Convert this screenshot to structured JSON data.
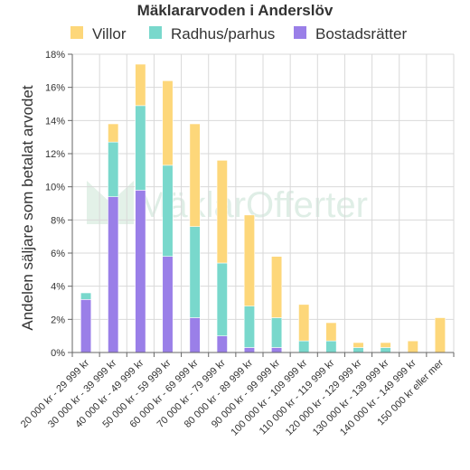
{
  "chart_data": {
    "type": "bar",
    "stacked": true,
    "title": "Mäklararvoden i Anderslöv",
    "ylabel": "Andelen säljare som betalat arvodet",
    "xlabel": "",
    "ylim": [
      0,
      18
    ],
    "yticks": [
      "0%",
      "2%",
      "4%",
      "6%",
      "8%",
      "10%",
      "12%",
      "14%",
      "16%",
      "18%"
    ],
    "grid": true,
    "legend_position": "top",
    "categories": [
      "20 000 kr - 29 999 kr",
      "30 000 kr - 39 999 kr",
      "40 000 kr - 49 999 kr",
      "50 000 kr - 59 999 kr",
      "60 000 kr - 69 999 kr",
      "70 000 kr - 79 999 kr",
      "80 000 kr - 89 999 kr",
      "90 000 kr - 99 999 kr",
      "100 000 kr - 109 999 kr",
      "110 000 kr - 119 999 kr",
      "120 000 kr - 129 999 kr",
      "130 000 kr - 139 999 kr",
      "140 000 kr - 149 999 kr",
      "150 000 kr eller mer"
    ],
    "series": [
      {
        "name": "Bostadsrätter",
        "color": "#9a7fe8",
        "values": [
          3.2,
          9.4,
          9.8,
          5.8,
          2.1,
          1.0,
          0.3,
          0.3,
          0,
          0,
          0,
          0,
          0,
          0
        ]
      },
      {
        "name": "Radhus/parhus",
        "color": "#79d8cc",
        "values": [
          0.4,
          3.3,
          5.1,
          5.5,
          5.5,
          4.4,
          2.5,
          1.8,
          0.7,
          0.7,
          0.3,
          0.3,
          0,
          0
        ]
      },
      {
        "name": "Villor",
        "color": "#fdd77a",
        "values": [
          0,
          1.1,
          2.5,
          5.1,
          6.2,
          6.2,
          5.5,
          3.7,
          2.2,
          1.1,
          0.3,
          0.3,
          0.7,
          2.1
        ]
      }
    ],
    "legend_order": [
      "Villor",
      "Radhus/parhus",
      "Bostadsrätter"
    ]
  }
}
